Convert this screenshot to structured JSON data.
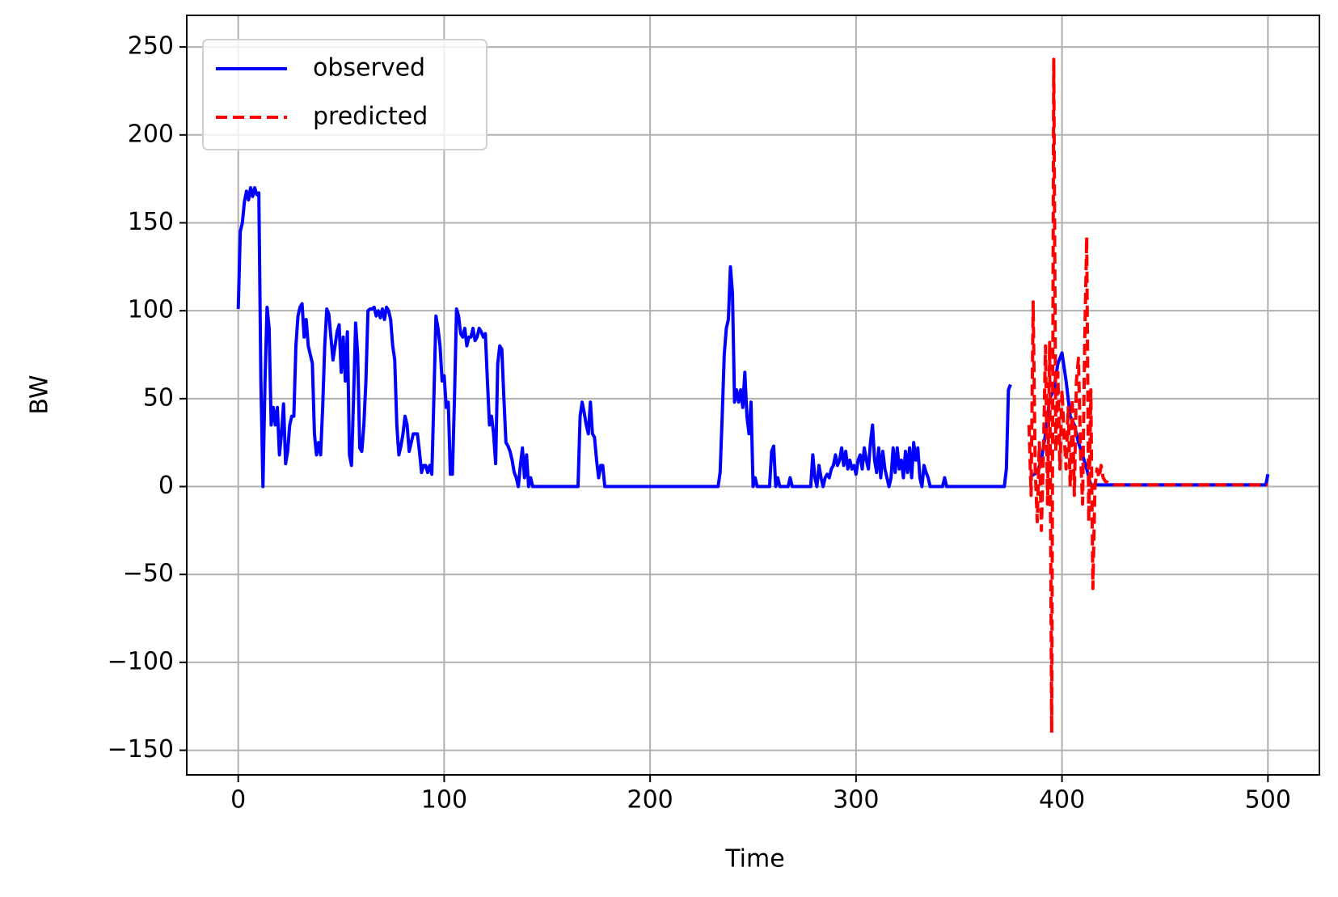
{
  "chart_data": {
    "type": "line",
    "x_label": "Time",
    "y_label": "BW",
    "xlim": [
      -25,
      525
    ],
    "ylim": [
      -164,
      268
    ],
    "xticks": [
      0,
      100,
      200,
      300,
      400,
      500
    ],
    "yticks": [
      {
        "value": -150,
        "label": "−150"
      },
      {
        "value": -100,
        "label": "−100"
      },
      {
        "value": -50,
        "label": "−50"
      },
      0,
      50,
      100,
      150,
      200,
      250
    ],
    "grid": true,
    "legend": "upper left",
    "series": [
      {
        "name": "observed",
        "color": "#0000ff",
        "style": "solid",
        "x": [
          0,
          1,
          2,
          3,
          4,
          5,
          6,
          7,
          8,
          9,
          10,
          11,
          12,
          13,
          14,
          15,
          16,
          17,
          18,
          19,
          20,
          21,
          22,
          23,
          24,
          25,
          26,
          27,
          28,
          29,
          30,
          31,
          32,
          33,
          34,
          35,
          36,
          37,
          38,
          39,
          40,
          41,
          42,
          43,
          44,
          45,
          46,
          47,
          48,
          49,
          50,
          51,
          52,
          53,
          54,
          55,
          56,
          57,
          58,
          59,
          60,
          61,
          62,
          63,
          64,
          65,
          66,
          67,
          68,
          69,
          70,
          71,
          72,
          73,
          74,
          75,
          76,
          77,
          78,
          79,
          80,
          81,
          82,
          83,
          84,
          85,
          86,
          87,
          88,
          89,
          90,
          91,
          92,
          93,
          94,
          95,
          96,
          97,
          98,
          99,
          100,
          101,
          102,
          103,
          104,
          105,
          106,
          107,
          108,
          109,
          110,
          111,
          112,
          113,
          114,
          115,
          116,
          117,
          118,
          119,
          120,
          121,
          122,
          123,
          124,
          125,
          126,
          127,
          128,
          129,
          130,
          131,
          132,
          133,
          134,
          135,
          136,
          137,
          138,
          139,
          140,
          141,
          142,
          143,
          144,
          165,
          166,
          167,
          168,
          169,
          170,
          171,
          172,
          173,
          174,
          175,
          176,
          177,
          178,
          233,
          234,
          235,
          236,
          237,
          238,
          239,
          240,
          241,
          242,
          243,
          244,
          245,
          246,
          247,
          248,
          249,
          250,
          251,
          252,
          258,
          259,
          260,
          261,
          262,
          263,
          267,
          268,
          269,
          278,
          279,
          280,
          281,
          282,
          283,
          284,
          285,
          286,
          287,
          288,
          289,
          290,
          291,
          292,
          293,
          294,
          295,
          296,
          297,
          298,
          299,
          300,
          301,
          302,
          303,
          304,
          305,
          306,
          307,
          308,
          309,
          310,
          311,
          312,
          313,
          314,
          315,
          316,
          317,
          318,
          319,
          320,
          321,
          322,
          323,
          324,
          325,
          326,
          327,
          328,
          329,
          330,
          331,
          332,
          333,
          334,
          335,
          336,
          342,
          343,
          344,
          372,
          373,
          374,
          375,
          380,
          385,
          388,
          390,
          392,
          394,
          396,
          398,
          400,
          402,
          404,
          406,
          408,
          410,
          412,
          414,
          416,
          499,
          500
        ],
        "values": [
          101,
          145,
          150,
          162,
          168,
          163,
          170,
          165,
          170,
          166,
          167,
          60,
          0,
          60,
          102,
          90,
          35,
          45,
          35,
          45,
          18,
          30,
          47,
          13,
          20,
          35,
          40,
          40,
          80,
          97,
          102,
          104,
          85,
          95,
          80,
          75,
          70,
          30,
          18,
          25,
          18,
          45,
          80,
          101,
          98,
          85,
          72,
          80,
          88,
          92,
          65,
          85,
          60,
          88,
          18,
          12,
          50,
          93,
          75,
          22,
          20,
          35,
          60,
          100,
          101,
          101,
          102,
          97,
          100,
          96,
          101,
          95,
          102,
          100,
          95,
          80,
          72,
          35,
          18,
          23,
          30,
          40,
          35,
          20,
          25,
          30,
          30,
          30,
          20,
          8,
          12,
          12,
          8,
          12,
          7,
          50,
          97,
          90,
          80,
          60,
          63,
          45,
          48,
          7,
          7,
          50,
          101,
          97,
          87,
          85,
          90,
          80,
          85,
          85,
          90,
          83,
          85,
          90,
          88,
          85,
          87,
          60,
          35,
          40,
          30,
          13,
          70,
          80,
          78,
          50,
          25,
          23,
          20,
          15,
          8,
          5,
          0,
          12,
          22,
          5,
          18,
          0,
          5,
          0,
          0,
          0,
          40,
          48,
          42,
          35,
          30,
          48,
          30,
          28,
          15,
          5,
          12,
          12,
          0,
          0,
          8,
          40,
          75,
          90,
          95,
          125,
          110,
          48,
          55,
          48,
          55,
          45,
          65,
          40,
          30,
          48,
          0,
          5,
          0,
          0,
          20,
          23,
          0,
          5,
          0,
          0,
          5,
          0,
          0,
          18,
          5,
          0,
          12,
          5,
          0,
          5,
          7,
          5,
          10,
          12,
          18,
          12,
          15,
          22,
          12,
          20,
          10,
          15,
          10,
          12,
          7,
          15,
          18,
          10,
          22,
          15,
          10,
          25,
          35,
          15,
          8,
          22,
          5,
          20,
          10,
          5,
          0,
          5,
          22,
          8,
          22,
          10,
          15,
          5,
          20,
          8,
          22,
          5,
          25,
          15,
          22,
          5,
          0,
          12,
          8,
          5,
          0,
          0,
          5,
          0,
          0,
          10,
          55,
          58,
          null,
          6,
          8,
          15,
          30,
          50,
          55,
          70,
          76,
          60,
          40,
          35,
          25,
          18,
          10,
          1,
          1,
          1,
          7
        ]
      },
      {
        "name": "predicted",
        "color": "#ff0000",
        "style": "dashed",
        "x": [
          384,
          385,
          386,
          387,
          388,
          389,
          390,
          391,
          392,
          393,
          394,
          395,
          396,
          397,
          398,
          399,
          400,
          401,
          402,
          403,
          404,
          405,
          406,
          407,
          408,
          409,
          410,
          411,
          412,
          413,
          414,
          415,
          416,
          417,
          418,
          419,
          420,
          421,
          425,
          500
        ],
        "values": [
          35,
          -5,
          105,
          10,
          -20,
          25,
          -25,
          20,
          80,
          -10,
          82,
          -140,
          243,
          20,
          65,
          10,
          55,
          30,
          10,
          45,
          0,
          50,
          -5,
          60,
          73,
          20,
          -10,
          80,
          142,
          -20,
          55,
          -58,
          0,
          10,
          5,
          12,
          5,
          3,
          1,
          1
        ]
      }
    ]
  }
}
